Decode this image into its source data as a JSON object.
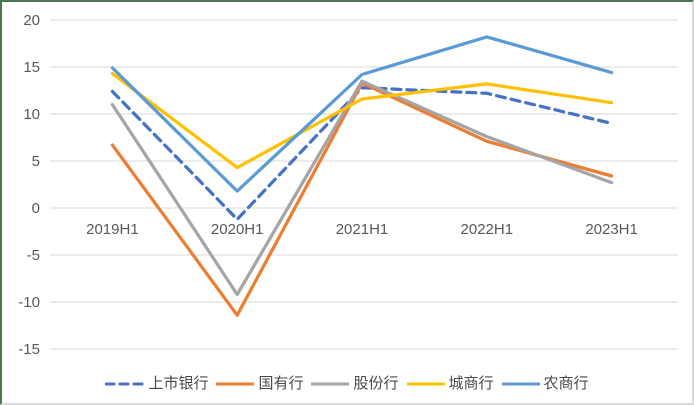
{
  "chart_data": {
    "type": "line",
    "categories": [
      "2019H1",
      "2020H1",
      "2021H1",
      "2022H1",
      "2023H1"
    ],
    "series": [
      {
        "name": "上市银行",
        "color": "#4472C4",
        "style": "dashed",
        "values": [
          12.4,
          -1.2,
          12.8,
          12.2,
          9.0
        ]
      },
      {
        "name": "国有行",
        "color": "#ED7D31",
        "style": "solid",
        "values": [
          6.7,
          -11.4,
          13.3,
          7.1,
          3.4
        ]
      },
      {
        "name": "股份行",
        "color": "#A5A5A5",
        "style": "solid",
        "values": [
          11.0,
          -9.2,
          13.5,
          7.6,
          2.7
        ]
      },
      {
        "name": "城商行",
        "color": "#FFC000",
        "style": "solid",
        "values": [
          14.3,
          4.3,
          11.6,
          13.2,
          11.2
        ]
      },
      {
        "name": "农商行",
        "color": "#5B9BD5",
        "style": "solid",
        "values": [
          14.9,
          1.8,
          14.2,
          18.2,
          14.4
        ]
      }
    ],
    "y_ticks": [
      20,
      15,
      10,
      5,
      0,
      -5,
      -10,
      -15
    ],
    "ylim": [
      -15,
      20
    ],
    "xlabel": "",
    "ylabel": "",
    "grid": true,
    "legend_position": "bottom",
    "axis_label_color": "#595959",
    "gridline_color": "#D9D9D9"
  }
}
